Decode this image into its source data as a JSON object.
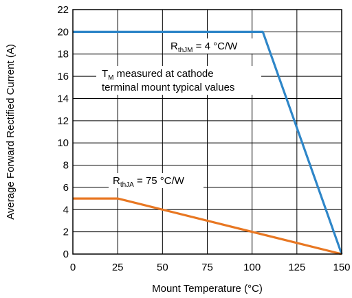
{
  "chart_data": {
    "type": "line",
    "xlabel": "Mount Temperature (°C)",
    "ylabel": "Average Forward Rectified Current (A)",
    "xlim": [
      0,
      150
    ],
    "ylim": [
      0,
      22
    ],
    "xticks": [
      0,
      25,
      50,
      75,
      100,
      125,
      150
    ],
    "yticks": [
      0,
      2,
      4,
      6,
      8,
      10,
      12,
      14,
      16,
      18,
      20,
      22
    ],
    "grid": true,
    "series": [
      {
        "color": "#2e86c8",
        "points": [
          [
            0,
            20
          ],
          [
            106,
            20
          ],
          [
            150,
            0
          ]
        ]
      },
      {
        "color": "#e87722",
        "points": [
          [
            0,
            5
          ],
          [
            25,
            5
          ],
          [
            150,
            0
          ]
        ]
      }
    ],
    "annotations": [
      {
        "id": "rthjm",
        "main": "R",
        "sub": "thJM",
        "rest": " = 4 °C/W"
      },
      {
        "id": "tm-note",
        "main": "T",
        "sub": "M",
        "rest": " measured at cathode",
        "line2": "terminal mount typical values"
      },
      {
        "id": "rthja",
        "main": "R",
        "sub": "thJA",
        "rest": " = 75 °C/W"
      }
    ]
  }
}
